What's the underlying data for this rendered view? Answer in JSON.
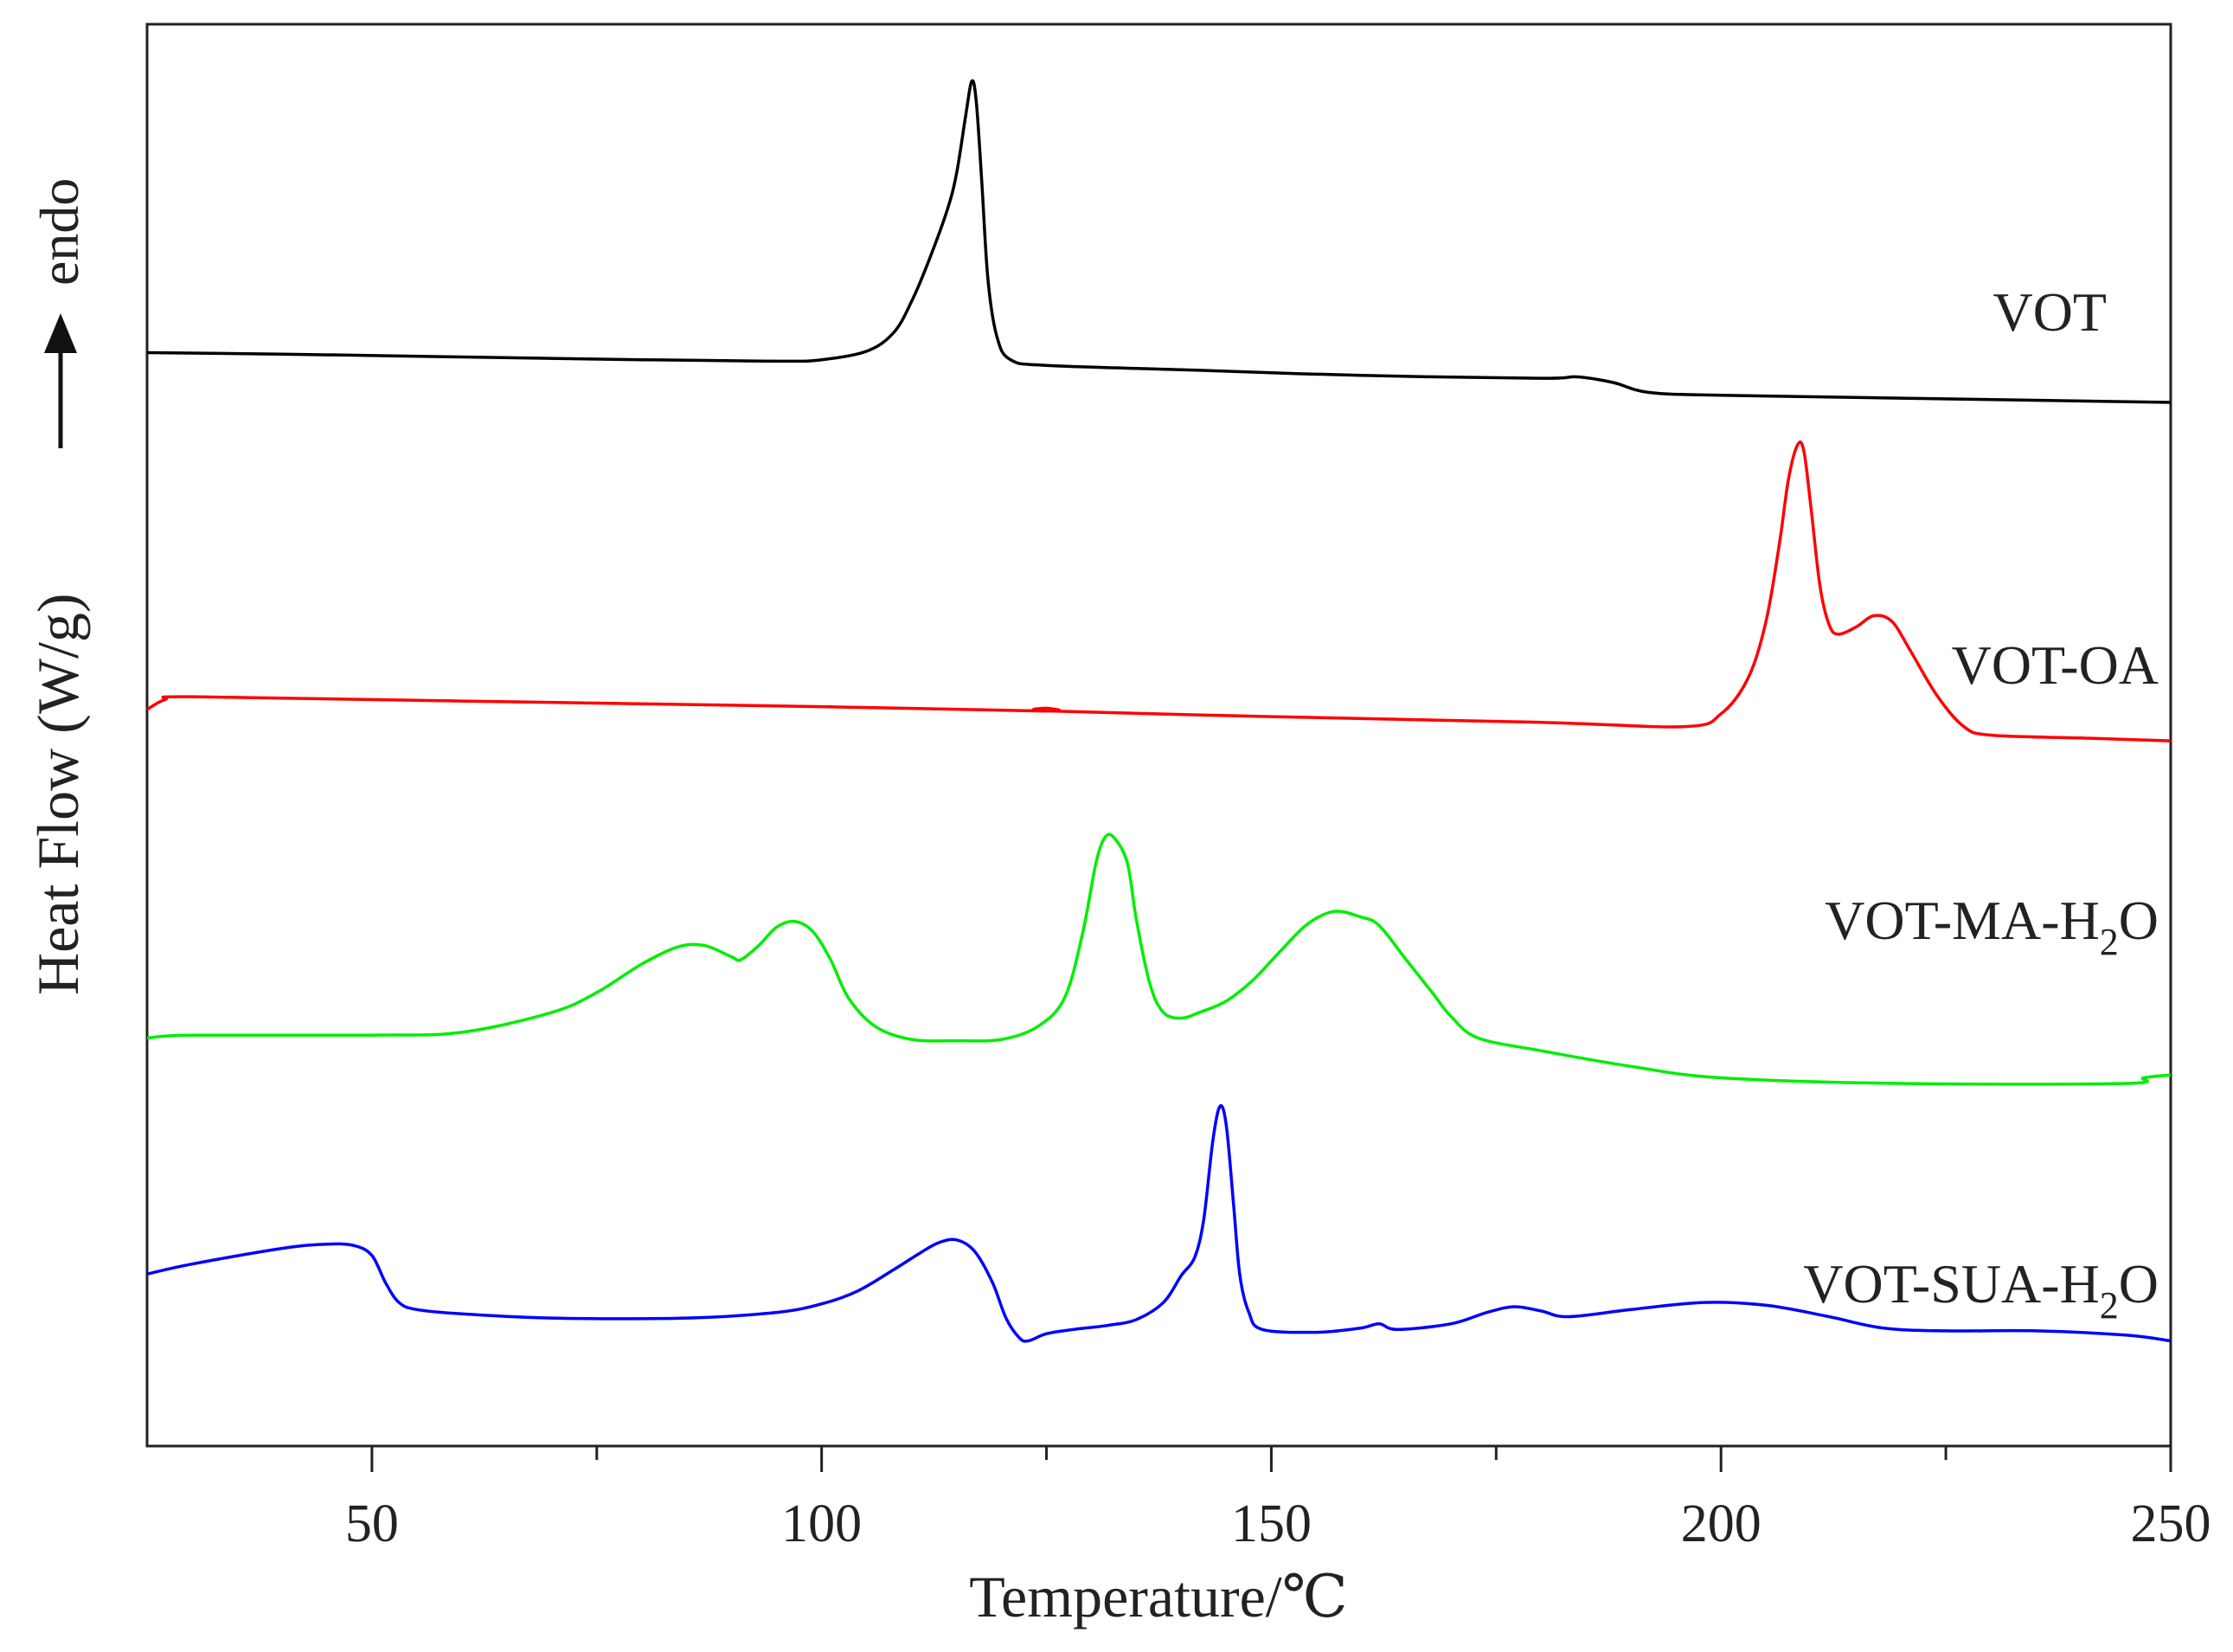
{
  "chart_data": {
    "type": "line",
    "title": "",
    "xlabel": "Temperature/℃",
    "ylabel": "Heat Flow (W/g)",
    "direction_label": "endo",
    "xlim": [
      25,
      250
    ],
    "ylim": [
      0,
      100
    ],
    "xticks": [
      50,
      100,
      150,
      200,
      250
    ],
    "xticks_minor": [
      75,
      125,
      175,
      225
    ],
    "grid": false,
    "legend": "inline labels at right end of each curve",
    "y_units_note": "stacked offset curves, arbitrary units (0 = bottom axis, 100 = top axis)",
    "series": [
      {
        "name": "VOT",
        "label": "VOT",
        "color": "#000000",
        "points": [
          [
            25,
            76.9
          ],
          [
            40,
            76.8
          ],
          [
            60,
            76.6
          ],
          [
            80,
            76.4
          ],
          [
            95,
            76.3
          ],
          [
            100,
            76.4
          ],
          [
            105,
            77.0
          ],
          [
            108,
            78.3
          ],
          [
            110,
            80.5
          ],
          [
            112,
            83.5
          ],
          [
            114,
            87.0
          ],
          [
            115,
            89.5
          ],
          [
            116,
            93.5
          ],
          [
            116.7,
            96.0
          ],
          [
            117.2,
            94.5
          ],
          [
            117.8,
            89.0
          ],
          [
            118.5,
            82.0
          ],
          [
            119.5,
            78.0
          ],
          [
            121,
            76.4
          ],
          [
            125,
            76.0
          ],
          [
            140,
            75.7
          ],
          [
            160,
            75.3
          ],
          [
            180,
            75.1
          ],
          [
            184,
            75.2
          ],
          [
            188,
            74.8
          ],
          [
            192,
            74.1
          ],
          [
            200,
            73.9
          ],
          [
            220,
            73.7
          ],
          [
            250,
            73.4
          ]
        ]
      },
      {
        "name": "VOT-OA",
        "label": "VOT-OA",
        "color": "#ff0000",
        "points": [
          [
            25,
            51.8
          ],
          [
            27,
            52.5
          ],
          [
            30,
            52.7
          ],
          [
            60,
            52.4
          ],
          [
            100,
            52.0
          ],
          [
            124.5,
            51.7
          ],
          [
            125,
            51.9
          ],
          [
            125.5,
            51.7
          ],
          [
            150,
            51.3
          ],
          [
            180,
            50.9
          ],
          [
            196,
            50.6
          ],
          [
            200,
            51.5
          ],
          [
            203,
            54.0
          ],
          [
            205,
            58.0
          ],
          [
            206.5,
            63.5
          ],
          [
            207.5,
            68.0
          ],
          [
            208.5,
            70.4
          ],
          [
            209.2,
            70.0
          ],
          [
            210,
            66.0
          ],
          [
            211,
            60.5
          ],
          [
            212,
            57.8
          ],
          [
            213,
            57.1
          ],
          [
            215,
            57.6
          ],
          [
            217,
            58.4
          ],
          [
            219,
            58.0
          ],
          [
            221,
            56.0
          ],
          [
            224,
            52.8
          ],
          [
            227,
            50.6
          ],
          [
            230,
            50.0
          ],
          [
            240,
            49.8
          ],
          [
            250,
            49.6
          ]
        ]
      },
      {
        "name": "VOT-MA-H2O",
        "label_main": "VOT-MA-H",
        "label_sub": "2",
        "label_tail": "O",
        "color": "#00ee00",
        "points": [
          [
            25,
            28.7
          ],
          [
            30,
            28.9
          ],
          [
            50,
            28.9
          ],
          [
            60,
            29.1
          ],
          [
            70,
            30.5
          ],
          [
            75,
            31.9
          ],
          [
            80,
            33.9
          ],
          [
            84,
            35.1
          ],
          [
            87,
            35.2
          ],
          [
            90,
            34.4
          ],
          [
            91,
            34.2
          ],
          [
            93,
            35.2
          ],
          [
            95,
            36.5
          ],
          [
            97,
            36.9
          ],
          [
            99,
            36.2
          ],
          [
            101,
            34.2
          ],
          [
            103,
            31.5
          ],
          [
            106,
            29.5
          ],
          [
            110,
            28.6
          ],
          [
            115,
            28.5
          ],
          [
            120,
            28.6
          ],
          [
            124,
            29.5
          ],
          [
            127,
            31.5
          ],
          [
            129,
            36.0
          ],
          [
            130.5,
            41.0
          ],
          [
            131.5,
            42.8
          ],
          [
            132.5,
            42.8
          ],
          [
            134,
            41.0
          ],
          [
            135,
            37.0
          ],
          [
            136.5,
            32.5
          ],
          [
            138,
            30.5
          ],
          [
            140,
            30.1
          ],
          [
            142,
            30.5
          ],
          [
            145,
            31.3
          ],
          [
            148,
            32.8
          ],
          [
            151,
            34.8
          ],
          [
            154,
            36.7
          ],
          [
            157,
            37.6
          ],
          [
            160,
            37.2
          ],
          [
            162,
            36.6
          ],
          [
            165,
            34.2
          ],
          [
            168,
            31.8
          ],
          [
            170,
            30.2
          ],
          [
            173,
            28.7
          ],
          [
            180,
            27.8
          ],
          [
            190,
            26.7
          ],
          [
            200,
            25.9
          ],
          [
            220,
            25.5
          ],
          [
            245,
            25.5
          ],
          [
            247,
            25.9
          ],
          [
            250,
            26.1
          ]
        ]
      },
      {
        "name": "VOT-SUA-H2O",
        "label_main": "VOT-SUA-H",
        "label_sub": "2",
        "label_tail": "O",
        "color": "#0000ff",
        "points": [
          [
            25,
            12.1
          ],
          [
            30,
            12.8
          ],
          [
            40,
            13.9
          ],
          [
            45,
            14.2
          ],
          [
            48,
            14.1
          ],
          [
            50,
            13.4
          ],
          [
            51.5,
            11.5
          ],
          [
            53,
            10.1
          ],
          [
            55,
            9.6
          ],
          [
            60,
            9.3
          ],
          [
            70,
            9.0
          ],
          [
            85,
            9.0
          ],
          [
            95,
            9.4
          ],
          [
            100,
            10.0
          ],
          [
            104,
            10.9
          ],
          [
            108,
            12.4
          ],
          [
            111,
            13.6
          ],
          [
            113,
            14.3
          ],
          [
            115,
            14.5
          ],
          [
            117,
            13.7
          ],
          [
            119,
            11.5
          ],
          [
            120.5,
            9.0
          ],
          [
            122,
            7.6
          ],
          [
            123,
            7.4
          ],
          [
            125,
            7.9
          ],
          [
            128,
            8.2
          ],
          [
            132,
            8.5
          ],
          [
            135,
            8.9
          ],
          [
            138,
            10.1
          ],
          [
            140,
            12.0
          ],
          [
            141.5,
            13.3
          ],
          [
            142.5,
            16.0
          ],
          [
            143.5,
            21.5
          ],
          [
            144.3,
            23.9
          ],
          [
            145,
            22.5
          ],
          [
            145.8,
            17.0
          ],
          [
            146.5,
            12.0
          ],
          [
            147.5,
            9.4
          ],
          [
            149,
            8.2
          ],
          [
            155,
            8.0
          ],
          [
            160,
            8.3
          ],
          [
            162,
            8.6
          ],
          [
            164,
            8.2
          ],
          [
            170,
            8.6
          ],
          [
            174,
            9.4
          ],
          [
            177,
            9.8
          ],
          [
            180,
            9.5
          ],
          [
            183,
            9.1
          ],
          [
            190,
            9.6
          ],
          [
            198,
            10.1
          ],
          [
            205,
            9.9
          ],
          [
            212,
            9.1
          ],
          [
            218,
            8.3
          ],
          [
            225,
            8.1
          ],
          [
            235,
            8.1
          ],
          [
            245,
            7.8
          ],
          [
            250,
            7.4
          ]
        ]
      }
    ]
  }
}
